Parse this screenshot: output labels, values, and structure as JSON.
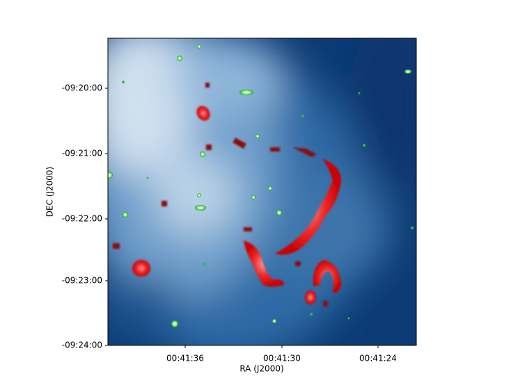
{
  "x_axis": {
    "label": "RA (J2000)",
    "ticks": [
      "00:41:36",
      "00:41:30",
      "00:41:24"
    ]
  },
  "y_axis": {
    "label": "DEC (J2000)",
    "ticks": [
      "-09:20:00",
      "-09:21:00",
      "-09:22:00",
      "-09:23:00",
      "-09:24:00"
    ]
  }
}
